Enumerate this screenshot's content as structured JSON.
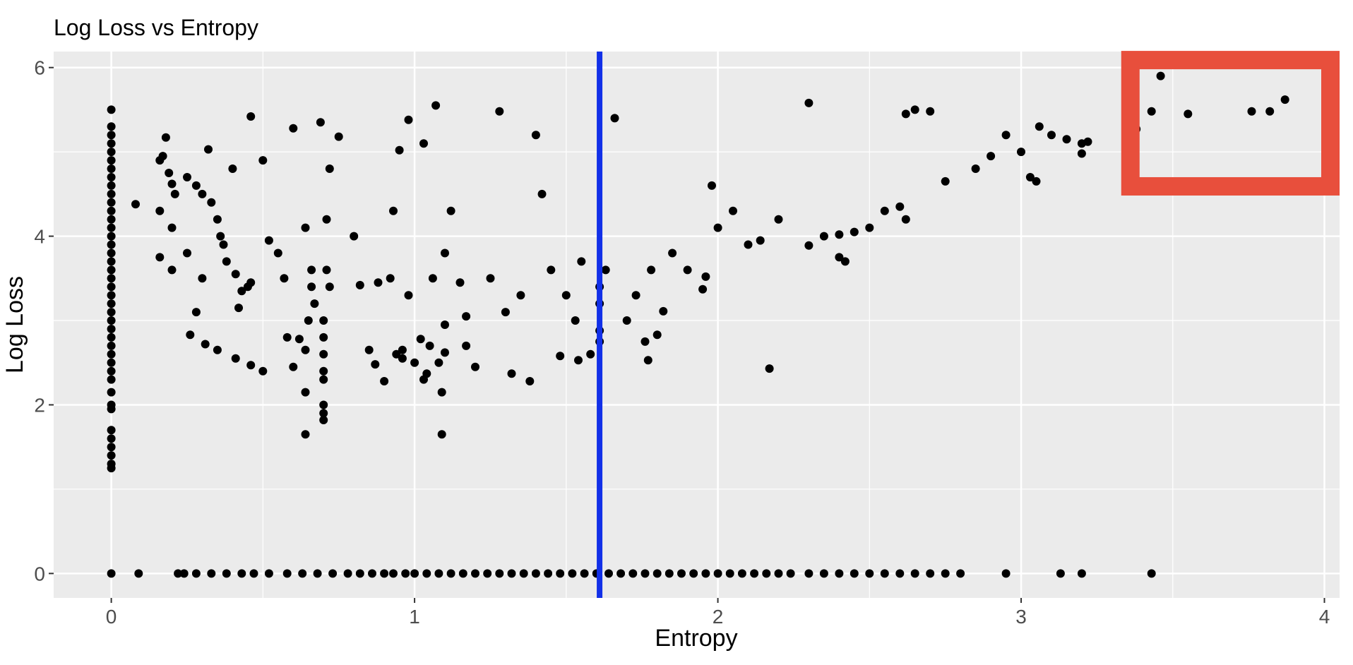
{
  "chart_data": {
    "type": "scatter",
    "title": "Log Loss vs Entropy",
    "xlabel": "Entropy",
    "ylabel": "Log Loss",
    "xlim": [
      -0.19,
      4.05
    ],
    "ylim": [
      -0.29,
      6.19
    ],
    "x_ticks": [
      0,
      1,
      2,
      3,
      4
    ],
    "x_tick_labels": [
      "0",
      "1",
      "2",
      "3",
      "4"
    ],
    "y_ticks": [
      0,
      2,
      4,
      6
    ],
    "y_tick_labels": [
      "0",
      "2",
      "4",
      "6"
    ],
    "grid": true,
    "reference_line": {
      "type": "vertical",
      "x": 1.61,
      "color": "#1230e8"
    },
    "highlight_box": {
      "x": [
        3.33,
        4.05
      ],
      "y": [
        4.7,
        5.98
      ],
      "color": "#e84f3c"
    },
    "colors": {
      "panel_background": "#ebebeb",
      "grid": "#ffffff",
      "points": "#000000"
    },
    "series": [
      {
        "points": [
          [
            0,
            5.5
          ],
          [
            0,
            5.3
          ],
          [
            0,
            5.2
          ],
          [
            0,
            5.1
          ],
          [
            0,
            5.0
          ],
          [
            0,
            4.9
          ],
          [
            0,
            4.8
          ],
          [
            0,
            4.7
          ],
          [
            0,
            4.6
          ],
          [
            0,
            4.5
          ],
          [
            0,
            4.4
          ],
          [
            0,
            4.3
          ],
          [
            0,
            4.2
          ],
          [
            0,
            4.1
          ],
          [
            0,
            4.0
          ],
          [
            0,
            3.9
          ],
          [
            0,
            3.8
          ],
          [
            0,
            3.7
          ],
          [
            0,
            3.6
          ],
          [
            0,
            3.5
          ],
          [
            0,
            3.4
          ],
          [
            0,
            3.3
          ],
          [
            0,
            3.2
          ],
          [
            0,
            3.1
          ],
          [
            0,
            3.0
          ],
          [
            0,
            2.9
          ],
          [
            0,
            2.8
          ],
          [
            0,
            2.7
          ],
          [
            0,
            2.6
          ],
          [
            0,
            2.5
          ],
          [
            0,
            2.4
          ],
          [
            0,
            2.3
          ],
          [
            0,
            2.15
          ],
          [
            0,
            2.0
          ],
          [
            0,
            1.95
          ],
          [
            0,
            1.7
          ],
          [
            0,
            1.6
          ],
          [
            0,
            1.5
          ],
          [
            0,
            1.4
          ],
          [
            0,
            1.3
          ],
          [
            0,
            1.25
          ],
          [
            0,
            0
          ],
          [
            0.08,
            4.38
          ],
          [
            0.16,
            4.9
          ],
          [
            0.17,
            4.95
          ],
          [
            0.18,
            5.17
          ],
          [
            0.19,
            4.75
          ],
          [
            0.2,
            4.62
          ],
          [
            0.21,
            4.5
          ],
          [
            0.16,
            4.3
          ],
          [
            0.2,
            4.1
          ],
          [
            0.16,
            3.75
          ],
          [
            0.2,
            3.6
          ],
          [
            0.25,
            3.8
          ],
          [
            0.25,
            4.7
          ],
          [
            0.28,
            4.6
          ],
          [
            0.3,
            4.5
          ],
          [
            0.32,
            5.03
          ],
          [
            0.33,
            4.4
          ],
          [
            0.35,
            4.2
          ],
          [
            0.36,
            4.0
          ],
          [
            0.37,
            3.9
          ],
          [
            0.38,
            3.7
          ],
          [
            0.4,
            4.8
          ],
          [
            0.26,
            2.83
          ],
          [
            0.28,
            3.1
          ],
          [
            0.3,
            3.5
          ],
          [
            0.31,
            2.72
          ],
          [
            0.35,
            2.65
          ],
          [
            0.41,
            3.55
          ],
          [
            0.41,
            2.55
          ],
          [
            0.42,
            3.15
          ],
          [
            0.43,
            3.35
          ],
          [
            0.45,
            3.4
          ],
          [
            0.46,
            3.45
          ],
          [
            0.46,
            2.47
          ],
          [
            0.46,
            5.42
          ],
          [
            0.5,
            2.4
          ],
          [
            0.5,
            4.9
          ],
          [
            0.52,
            3.95
          ],
          [
            0.55,
            3.8
          ],
          [
            0.57,
            3.5
          ],
          [
            0.58,
            2.8
          ],
          [
            0.6,
            2.45
          ],
          [
            0.6,
            5.28
          ],
          [
            0.62,
            2.78
          ],
          [
            0.64,
            2.65
          ],
          [
            0.64,
            4.1
          ],
          [
            0.64,
            2.15
          ],
          [
            0.64,
            1.65
          ],
          [
            0.65,
            3.0
          ],
          [
            0.66,
            3.6
          ],
          [
            0.66,
            3.4
          ],
          [
            0.67,
            3.2
          ],
          [
            0.69,
            5.35
          ],
          [
            0.7,
            3.0
          ],
          [
            0.7,
            2.8
          ],
          [
            0.7,
            2.6
          ],
          [
            0.7,
            2.4
          ],
          [
            0.7,
            2.3
          ],
          [
            0.7,
            2.0
          ],
          [
            0.7,
            1.9
          ],
          [
            0.7,
            1.82
          ],
          [
            0.71,
            4.2
          ],
          [
            0.71,
            3.6
          ],
          [
            0.72,
            3.4
          ],
          [
            0.72,
            4.8
          ],
          [
            0.75,
            5.18
          ],
          [
            0.8,
            4.0
          ],
          [
            0.82,
            3.42
          ],
          [
            0.85,
            2.65
          ],
          [
            0.87,
            2.48
          ],
          [
            0.88,
            3.45
          ],
          [
            0.9,
            2.28
          ],
          [
            0.92,
            3.5
          ],
          [
            0.93,
            4.3
          ],
          [
            0.94,
            2.6
          ],
          [
            0.95,
            5.02
          ],
          [
            0.96,
            2.55
          ],
          [
            0.96,
            2.65
          ],
          [
            0.98,
            5.38
          ],
          [
            0.98,
            3.3
          ],
          [
            1.0,
            2.5
          ],
          [
            1.02,
            2.78
          ],
          [
            1.03,
            2.3
          ],
          [
            1.03,
            5.1
          ],
          [
            1.04,
            2.37
          ],
          [
            1.05,
            2.7
          ],
          [
            1.06,
            3.5
          ],
          [
            1.07,
            5.55
          ],
          [
            1.08,
            2.5
          ],
          [
            1.09,
            2.15
          ],
          [
            1.09,
            1.65
          ],
          [
            1.1,
            2.95
          ],
          [
            1.1,
            2.62
          ],
          [
            1.1,
            3.8
          ],
          [
            1.12,
            4.3
          ],
          [
            1.15,
            3.45
          ],
          [
            1.17,
            2.7
          ],
          [
            1.17,
            3.05
          ],
          [
            1.2,
            2.45
          ],
          [
            1.25,
            3.5
          ],
          [
            1.28,
            5.48
          ],
          [
            1.3,
            3.1
          ],
          [
            1.32,
            2.37
          ],
          [
            1.35,
            3.3
          ],
          [
            1.38,
            2.28
          ],
          [
            1.4,
            5.2
          ],
          [
            1.42,
            4.5
          ],
          [
            1.45,
            3.6
          ],
          [
            1.48,
            2.58
          ],
          [
            1.5,
            3.3
          ],
          [
            1.53,
            3.0
          ],
          [
            1.54,
            2.53
          ],
          [
            1.55,
            3.7
          ],
          [
            1.58,
            2.6
          ],
          [
            1.61,
            3.4
          ],
          [
            1.61,
            3.2
          ],
          [
            1.61,
            2.88
          ],
          [
            1.61,
            2.75
          ],
          [
            1.63,
            3.6
          ],
          [
            1.66,
            5.4
          ],
          [
            1.7,
            3.0
          ],
          [
            1.73,
            3.3
          ],
          [
            1.76,
            2.75
          ],
          [
            1.77,
            2.53
          ],
          [
            1.78,
            3.6
          ],
          [
            1.8,
            2.83
          ],
          [
            1.82,
            3.11
          ],
          [
            1.85,
            3.8
          ],
          [
            1.9,
            3.6
          ],
          [
            1.95,
            3.37
          ],
          [
            1.96,
            3.52
          ],
          [
            1.98,
            4.6
          ],
          [
            2.0,
            4.1
          ],
          [
            2.05,
            4.3
          ],
          [
            2.1,
            3.9
          ],
          [
            2.14,
            3.95
          ],
          [
            2.17,
            2.43
          ],
          [
            2.2,
            4.2
          ],
          [
            2.3,
            5.58
          ],
          [
            2.3,
            3.89
          ],
          [
            2.35,
            4.0
          ],
          [
            2.4,
            4.02
          ],
          [
            2.4,
            3.75
          ],
          [
            2.42,
            3.7
          ],
          [
            2.45,
            4.05
          ],
          [
            2.5,
            4.1
          ],
          [
            2.55,
            4.3
          ],
          [
            2.6,
            4.35
          ],
          [
            2.62,
            4.2
          ],
          [
            2.62,
            5.45
          ],
          [
            2.65,
            5.5
          ],
          [
            2.7,
            5.48
          ],
          [
            2.75,
            4.65
          ],
          [
            2.85,
            4.8
          ],
          [
            2.9,
            4.95
          ],
          [
            2.95,
            5.2
          ],
          [
            3.0,
            5.0
          ],
          [
            3.03,
            4.7
          ],
          [
            3.05,
            4.65
          ],
          [
            3.06,
            5.3
          ],
          [
            3.1,
            5.2
          ],
          [
            3.15,
            5.15
          ],
          [
            3.2,
            5.1
          ],
          [
            3.2,
            4.98
          ],
          [
            3.22,
            5.12
          ],
          [
            3.35,
            5.2
          ],
          [
            3.37,
            5.32
          ],
          [
            3.38,
            5.27
          ],
          [
            3.43,
            5.48
          ],
          [
            3.46,
            5.9
          ],
          [
            3.55,
            5.45
          ],
          [
            3.76,
            5.48
          ],
          [
            3.82,
            5.48
          ],
          [
            3.87,
            5.62
          ],
          [
            0.09,
            0
          ],
          [
            0.22,
            0
          ],
          [
            0.24,
            0
          ],
          [
            0.28,
            0
          ],
          [
            0.33,
            0
          ],
          [
            0.38,
            0
          ],
          [
            0.43,
            0
          ],
          [
            0.47,
            0
          ],
          [
            0.52,
            0
          ],
          [
            0.58,
            0
          ],
          [
            0.63,
            0
          ],
          [
            0.68,
            0
          ],
          [
            0.73,
            0
          ],
          [
            0.78,
            0
          ],
          [
            0.82,
            0
          ],
          [
            0.86,
            0
          ],
          [
            0.9,
            0
          ],
          [
            0.93,
            0
          ],
          [
            0.97,
            0
          ],
          [
            1.0,
            0
          ],
          [
            1.04,
            0
          ],
          [
            1.08,
            0
          ],
          [
            1.12,
            0
          ],
          [
            1.16,
            0
          ],
          [
            1.2,
            0
          ],
          [
            1.24,
            0
          ],
          [
            1.28,
            0
          ],
          [
            1.32,
            0
          ],
          [
            1.36,
            0
          ],
          [
            1.4,
            0
          ],
          [
            1.44,
            0
          ],
          [
            1.48,
            0
          ],
          [
            1.52,
            0
          ],
          [
            1.56,
            0
          ],
          [
            1.6,
            0
          ],
          [
            1.64,
            0
          ],
          [
            1.68,
            0
          ],
          [
            1.72,
            0
          ],
          [
            1.76,
            0
          ],
          [
            1.8,
            0
          ],
          [
            1.84,
            0
          ],
          [
            1.88,
            0
          ],
          [
            1.92,
            0
          ],
          [
            1.96,
            0
          ],
          [
            2.0,
            0
          ],
          [
            2.04,
            0
          ],
          [
            2.08,
            0
          ],
          [
            2.12,
            0
          ],
          [
            2.16,
            0
          ],
          [
            2.2,
            0
          ],
          [
            2.24,
            0
          ],
          [
            2.3,
            0
          ],
          [
            2.35,
            0
          ],
          [
            2.4,
            0
          ],
          [
            2.45,
            0
          ],
          [
            2.5,
            0
          ],
          [
            2.55,
            0
          ],
          [
            2.6,
            0
          ],
          [
            2.65,
            0
          ],
          [
            2.7,
            0
          ],
          [
            2.75,
            0
          ],
          [
            2.8,
            0
          ],
          [
            2.95,
            0
          ],
          [
            3.13,
            0
          ],
          [
            3.2,
            0
          ],
          [
            3.43,
            0
          ]
        ]
      }
    ]
  }
}
